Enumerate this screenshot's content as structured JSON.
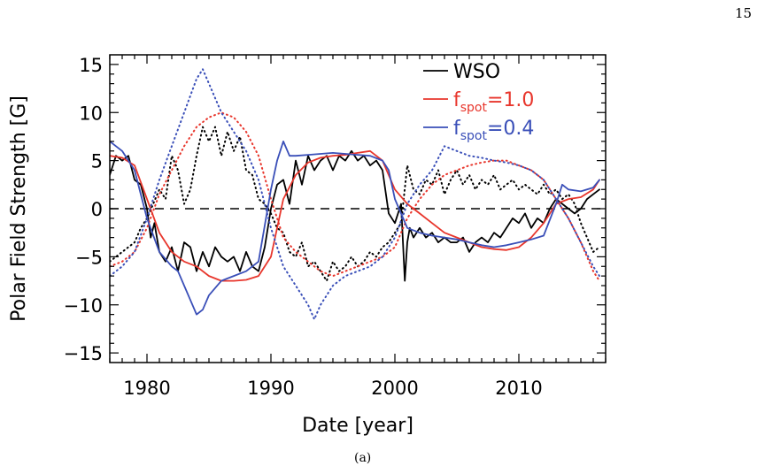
{
  "page": {
    "number": "15",
    "caption": "(a)"
  },
  "colors": {
    "wso": "#000000",
    "red": "#e8362c",
    "blue": "#3a4fb8"
  },
  "chart_data": {
    "type": "line",
    "title": "",
    "xlabel": "Date [year]",
    "ylabel": "Polar Field Strength [G]",
    "xlim": [
      1977,
      2017
    ],
    "ylim": [
      -16,
      16
    ],
    "x_ticks": [
      1980,
      1990,
      2000,
      2010
    ],
    "x_tick_labels": [
      "1980",
      "1990",
      "2000",
      "2010"
    ],
    "y_ticks": [
      -15,
      -10,
      -5,
      0,
      5,
      10,
      15
    ],
    "y_tick_labels": [
      "−15",
      "−10",
      "−5",
      "0",
      "5",
      "10",
      "15"
    ],
    "zero_line": "dashed",
    "legend": {
      "position": "top-right",
      "items": [
        {
          "series": "WSO",
          "label": "WSO",
          "color": "#000000"
        },
        {
          "series": "fspot1",
          "base": "f",
          "sub": "spot",
          "rest": "=1.0",
          "color": "#e8362c"
        },
        {
          "series": "fspot04",
          "base": "f",
          "sub": "spot",
          "rest": "=0.4",
          "color": "#3a4fb8"
        }
      ]
    },
    "series": [
      {
        "name": "WSO",
        "hemisphere": "north",
        "color": "#000000",
        "style": "solid",
        "x": [
          1977.0,
          1977.5,
          1978.0,
          1978.5,
          1979.0,
          1979.5,
          1980.0,
          1980.3,
          1980.6,
          1981.0,
          1981.5,
          1982.0,
          1982.5,
          1983.0,
          1983.5,
          1984.0,
          1984.5,
          1985.0,
          1985.5,
          1986.0,
          1986.5,
          1987.0,
          1987.5,
          1988.0,
          1988.5,
          1989.0,
          1989.5,
          1990.0,
          1990.5,
          1991.0,
          1991.5,
          1992.0,
          1992.5,
          1993.0,
          1993.5,
          1994.0,
          1994.5,
          1995.0,
          1995.5,
          1996.0,
          1996.5,
          1997.0,
          1997.5,
          1998.0,
          1998.5,
          1999.0,
          1999.5,
          2000.0,
          2000.5,
          2000.8,
          2001.0,
          2001.2,
          2001.5,
          2002.0,
          2002.5,
          2003.0,
          2003.5,
          2004.0,
          2004.5,
          2005.0,
          2005.5,
          2006.0,
          2006.5,
          2007.0,
          2007.5,
          2008.0,
          2008.5,
          2009.0,
          2009.5,
          2010.0,
          2010.5,
          2011.0,
          2011.5,
          2012.0,
          2012.5,
          2013.0,
          2013.5,
          2014.0,
          2014.5,
          2015.0,
          2015.5,
          2016.0,
          2016.5
        ],
        "y": [
          3.5,
          5.5,
          5.0,
          5.5,
          3.0,
          2.5,
          0.0,
          -3.0,
          -1.5,
          -4.5,
          -5.5,
          -4.0,
          -6.5,
          -3.5,
          -4.0,
          -6.5,
          -4.5,
          -6.0,
          -4.0,
          -5.0,
          -5.5,
          -5.0,
          -6.5,
          -4.5,
          -6.0,
          -6.5,
          -4.0,
          0.0,
          2.5,
          3.0,
          0.5,
          5.0,
          2.5,
          5.5,
          4.0,
          5.0,
          5.5,
          4.0,
          5.5,
          5.0,
          6.0,
          5.0,
          5.5,
          4.5,
          5.0,
          4.0,
          -0.5,
          -1.5,
          0.5,
          -7.5,
          -3.5,
          -2.0,
          -3.0,
          -2.0,
          -3.0,
          -2.5,
          -3.5,
          -3.0,
          -3.5,
          -3.5,
          -3.0,
          -4.5,
          -3.5,
          -3.0,
          -3.5,
          -2.5,
          -3.0,
          -2.0,
          -1.0,
          -1.5,
          -0.5,
          -2.0,
          -1.0,
          -1.5,
          0.0,
          1.0,
          0.5,
          0.0,
          -0.5,
          0.0,
          1.0,
          1.5,
          2.0
        ]
      },
      {
        "name": "WSO",
        "hemisphere": "south",
        "color": "#000000",
        "style": "dotted",
        "x": [
          1977.0,
          1977.5,
          1978.0,
          1978.5,
          1979.0,
          1979.5,
          1980.0,
          1980.5,
          1981.0,
          1981.5,
          1982.0,
          1982.5,
          1983.0,
          1983.5,
          1984.0,
          1984.5,
          1985.0,
          1985.5,
          1986.0,
          1986.5,
          1987.0,
          1987.5,
          1988.0,
          1988.5,
          1989.0,
          1989.5,
          1990.0,
          1990.5,
          1991.0,
          1991.5,
          1992.0,
          1992.5,
          1993.0,
          1993.5,
          1994.0,
          1994.5,
          1995.0,
          1995.5,
          1996.0,
          1996.5,
          1997.0,
          1997.5,
          1998.0,
          1998.5,
          1999.0,
          1999.5,
          2000.0,
          2000.5,
          2001.0,
          2001.5,
          2002.0,
          2002.5,
          2003.0,
          2003.5,
          2004.0,
          2004.5,
          2005.0,
          2005.5,
          2006.0,
          2006.5,
          2007.0,
          2007.5,
          2008.0,
          2008.5,
          2009.0,
          2009.5,
          2010.0,
          2010.5,
          2011.0,
          2011.5,
          2012.0,
          2012.5,
          2013.0,
          2013.5,
          2014.0,
          2014.5,
          2015.0,
          2015.5,
          2016.0,
          2016.5
        ],
        "y": [
          -5.5,
          -5.0,
          -4.5,
          -4.0,
          -3.5,
          -2.0,
          -1.0,
          0.5,
          2.0,
          1.0,
          5.5,
          4.0,
          0.5,
          2.0,
          5.5,
          8.5,
          7.0,
          8.5,
          5.5,
          8.0,
          6.0,
          7.5,
          4.0,
          3.5,
          1.0,
          0.5,
          -0.5,
          -2.0,
          -2.5,
          -4.5,
          -5.0,
          -3.5,
          -6.0,
          -5.5,
          -6.5,
          -7.5,
          -5.5,
          -6.5,
          -6.0,
          -5.0,
          -6.0,
          -5.5,
          -4.5,
          -5.0,
          -4.0,
          -3.5,
          -2.5,
          -1.5,
          4.5,
          2.0,
          1.5,
          3.0,
          2.5,
          4.0,
          1.5,
          3.0,
          4.0,
          2.5,
          3.5,
          2.0,
          3.0,
          2.5,
          3.5,
          2.0,
          2.5,
          3.0,
          2.0,
          2.5,
          2.0,
          1.5,
          2.5,
          1.5,
          2.0,
          1.0,
          1.5,
          0.5,
          -1.5,
          -3.0,
          -4.5,
          -4.0
        ]
      },
      {
        "name": "fspot=1.0",
        "hemisphere": "north",
        "color": "#e8362c",
        "style": "solid",
        "x": [
          1977.0,
          1978.0,
          1979.0,
          1980.0,
          1981.0,
          1982.0,
          1983.0,
          1984.0,
          1985.0,
          1986.0,
          1987.0,
          1988.0,
          1989.0,
          1990.0,
          1991.0,
          1992.0,
          1993.0,
          1994.0,
          1995.0,
          1996.0,
          1997.0,
          1998.0,
          1999.0,
          2000.0,
          2001.0,
          2002.0,
          2003.0,
          2004.0,
          2005.0,
          2006.0,
          2007.0,
          2008.0,
          2009.0,
          2010.0,
          2011.0,
          2012.0,
          2013.0,
          2014.0,
          2015.0,
          2016.0,
          2016.5
        ],
        "y": [
          5.5,
          5.3,
          4.5,
          1.0,
          -2.5,
          -4.5,
          -5.5,
          -6.0,
          -7.0,
          -7.5,
          -7.5,
          -7.4,
          -7.0,
          -5.0,
          1.0,
          3.5,
          4.8,
          5.3,
          5.5,
          5.6,
          5.8,
          6.0,
          5.0,
          2.0,
          0.5,
          -0.5,
          -1.5,
          -2.5,
          -3.0,
          -3.5,
          -4.0,
          -4.2,
          -4.3,
          -4.0,
          -3.0,
          -1.5,
          0.5,
          1.0,
          1.2,
          2.0,
          3.0
        ]
      },
      {
        "name": "fspot=1.0",
        "hemisphere": "south",
        "color": "#e8362c",
        "style": "dotted",
        "x": [
          1977.0,
          1978.0,
          1979.0,
          1980.0,
          1981.0,
          1982.0,
          1983.0,
          1984.0,
          1985.0,
          1986.0,
          1987.0,
          1988.0,
          1989.0,
          1990.0,
          1991.0,
          1992.0,
          1993.0,
          1994.0,
          1995.0,
          1996.0,
          1997.0,
          1998.0,
          1999.0,
          2000.0,
          2001.0,
          2002.0,
          2003.0,
          2004.0,
          2005.0,
          2006.0,
          2007.0,
          2008.0,
          2009.0,
          2010.0,
          2011.0,
          2012.0,
          2013.0,
          2014.0,
          2015.0,
          2016.0,
          2016.5
        ],
        "y": [
          -6.0,
          -5.5,
          -4.5,
          -2.0,
          1.5,
          4.0,
          6.5,
          8.5,
          9.5,
          10.0,
          9.5,
          8.0,
          5.5,
          1.0,
          -3.0,
          -4.5,
          -5.5,
          -6.5,
          -7.0,
          -6.5,
          -6.0,
          -5.5,
          -5.0,
          -4.0,
          -1.0,
          1.0,
          2.5,
          3.5,
          4.0,
          4.5,
          4.8,
          5.0,
          5.0,
          4.5,
          4.0,
          3.0,
          1.0,
          -1.0,
          -3.5,
          -6.5,
          -7.5
        ]
      },
      {
        "name": "fspot=0.4",
        "hemisphere": "north",
        "color": "#3a4fb8",
        "style": "solid",
        "x": [
          1977.0,
          1978.0,
          1979.0,
          1980.0,
          1981.0,
          1982.0,
          1982.5,
          1983.0,
          1983.5,
          1984.0,
          1984.5,
          1985.0,
          1986.0,
          1987.0,
          1988.0,
          1989.0,
          1990.0,
          1990.5,
          1991.0,
          1991.5,
          1992.0,
          1993.0,
          1994.0,
          1995.0,
          1996.0,
          1997.0,
          1998.0,
          1999.0,
          1999.5,
          2000.0,
          2001.0,
          2002.0,
          2003.0,
          2004.0,
          2005.0,
          2006.0,
          2007.0,
          2008.0,
          2009.0,
          2010.0,
          2011.0,
          2012.0,
          2013.0,
          2013.5,
          2014.0,
          2015.0,
          2016.0,
          2016.5
        ],
        "y": [
          7.0,
          6.0,
          4.0,
          -1.0,
          -4.5,
          -6.0,
          -6.5,
          -8.0,
          -9.5,
          -11.0,
          -10.5,
          -9.0,
          -7.5,
          -7.0,
          -6.5,
          -5.5,
          2.0,
          5.0,
          7.0,
          5.5,
          5.5,
          5.6,
          5.7,
          5.8,
          5.7,
          5.6,
          5.5,
          5.0,
          4.0,
          1.0,
          -2.0,
          -2.5,
          -2.8,
          -3.0,
          -3.2,
          -3.5,
          -3.8,
          -4.0,
          -3.8,
          -3.5,
          -3.2,
          -2.8,
          0.5,
          2.5,
          2.0,
          1.8,
          2.2,
          3.0
        ]
      },
      {
        "name": "fspot=0.4",
        "hemisphere": "south",
        "color": "#3a4fb8",
        "style": "dotted",
        "x": [
          1977.0,
          1978.0,
          1979.0,
          1980.0,
          1981.0,
          1982.0,
          1983.0,
          1984.0,
          1984.5,
          1985.0,
          1986.0,
          1987.0,
          1988.0,
          1989.0,
          1990.0,
          1991.0,
          1992.0,
          1993.0,
          1993.5,
          1994.0,
          1995.0,
          1996.0,
          1997.0,
          1998.0,
          1999.0,
          2000.0,
          2001.0,
          2002.0,
          2003.0,
          2004.0,
          2005.0,
          2006.0,
          2007.0,
          2008.0,
          2009.0,
          2010.0,
          2011.0,
          2012.0,
          2013.0,
          2014.0,
          2015.0,
          2016.0,
          2016.5
        ],
        "y": [
          -7.0,
          -6.0,
          -4.5,
          -1.0,
          3.0,
          6.5,
          10.0,
          13.5,
          14.5,
          13.0,
          10.0,
          8.0,
          6.0,
          3.0,
          -2.0,
          -6.0,
          -8.0,
          -10.0,
          -11.5,
          -10.0,
          -8.0,
          -7.0,
          -6.5,
          -6.0,
          -5.0,
          -3.0,
          0.5,
          2.5,
          4.0,
          6.5,
          6.0,
          5.5,
          5.3,
          5.0,
          4.8,
          4.5,
          4.0,
          3.0,
          1.0,
          -1.0,
          -3.5,
          -6.0,
          -7.0
        ]
      }
    ]
  }
}
